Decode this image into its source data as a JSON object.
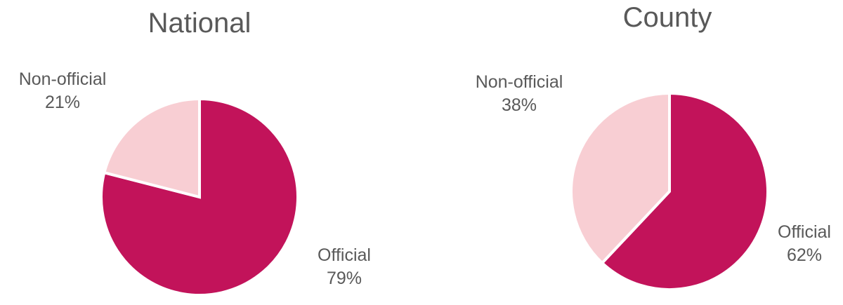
{
  "chart_data": [
    {
      "type": "pie",
      "title": "National",
      "slices": [
        {
          "label": "Official",
          "value": 79,
          "value_text": "79%",
          "color": "#C2135A"
        },
        {
          "label": "Non-official",
          "value": 21,
          "value_text": "21%",
          "color": "#F8CED3"
        }
      ],
      "start_angle_deg": 0,
      "direction": "clockwise",
      "slice_border_color": "#FFFFFF"
    },
    {
      "type": "pie",
      "title": "County",
      "slices": [
        {
          "label": "Official",
          "value": 62,
          "value_text": "62%",
          "color": "#C2135A"
        },
        {
          "label": "Non-official",
          "value": 38,
          "value_text": "38%",
          "color": "#F8CED3"
        }
      ],
      "start_angle_deg": 0,
      "direction": "clockwise",
      "slice_border_color": "#FFFFFF"
    }
  ]
}
